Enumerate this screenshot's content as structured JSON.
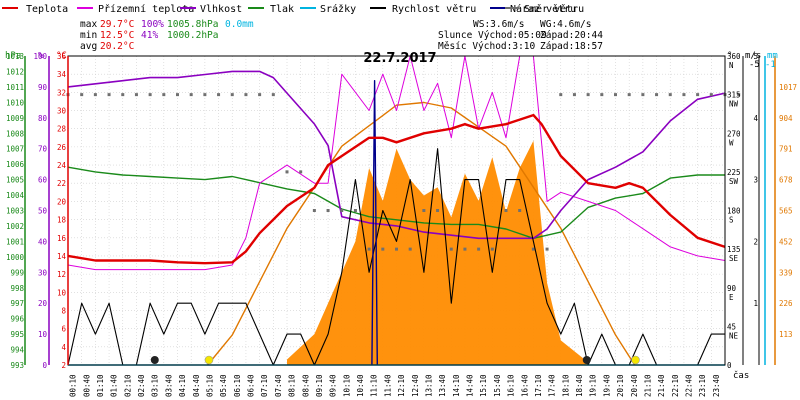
{
  "title": "22.7.2017",
  "legend": [
    {
      "label": "Teplota",
      "color": "#e00000",
      "style": "line"
    },
    {
      "label": "Přízemní teplota",
      "color": "#dd00dd",
      "style": "line"
    },
    {
      "label": "Vlhkost",
      "color": "#8a00c0",
      "style": "line"
    },
    {
      "label": "Tlak",
      "color": "#1a8a1a",
      "style": "line"
    },
    {
      "label": "Srážky",
      "color": "#00b4e0",
      "style": "line"
    },
    {
      "label": "Rychlost větru",
      "color": "#000000",
      "style": "line"
    },
    {
      "label": "Náraz větru",
      "color": "#00008b",
      "style": "line"
    },
    {
      "label": "Směr větru",
      "color": "#707070",
      "style": "dot"
    }
  ],
  "stats": {
    "max_label": "max",
    "max_temp": "29.7°C",
    "max_hum": "100%",
    "max_press": "1005.8hPa",
    "max_rain": "0.0mm",
    "min_label": "min",
    "min_temp": "12.5°C",
    "min_hum": "41%",
    "min_press": "1000.2hPa",
    "avg_label": "avg",
    "avg_temp": "20.2°C",
    "ws": "WS:3.6m/s",
    "wg": "WG:4.6m/s",
    "sun": "Slunce Východ:05:09",
    "sun_set": "Západ:20:44",
    "moon": "Měsíc  Východ:3:10",
    "moon_set": "Západ:18:57"
  },
  "axes": {
    "hpa_label": "hPa",
    "pct_label": "%",
    "degc_label": "°C",
    "deg_label": "°",
    "ms_label": "m/s",
    "mm_label": "mm",
    "time_label": "čas",
    "hpa_ticks": [
      "1013",
      "1012",
      "1011",
      "1010",
      "1009",
      "1008",
      "1007",
      "1006",
      "1005",
      "1004",
      "1003",
      "1002",
      "1001",
      "1000",
      "999",
      "998",
      "997",
      "996",
      "995",
      "994",
      "993"
    ],
    "pct_ticks": [
      "100",
      "90",
      "80",
      "70",
      "60",
      "50",
      "40",
      "30",
      "20",
      "10",
      "0"
    ],
    "degc_ticks": [
      "36",
      "34",
      "32",
      "30",
      "28",
      "26",
      "24",
      "22",
      "20",
      "18",
      "16",
      "14",
      "12",
      "10",
      "8",
      "6",
      "4",
      "2"
    ],
    "dir_ticks": [
      "360",
      "315",
      "270",
      "225",
      "180",
      "135",
      "90",
      "45",
      "0"
    ],
    "dir_names": [
      "N",
      "NW",
      "W",
      "SW",
      "S",
      "SE",
      "E",
      "NE",
      ""
    ],
    "ms_ticks": [
      "5",
      "4",
      "3",
      "2",
      "1"
    ],
    "ms_top": "-5",
    "mm_top": "-1",
    "solar_ticks": [
      "1017",
      "904",
      "791",
      "678",
      "565",
      "452",
      "339",
      "226",
      "113"
    ],
    "time_ticks": [
      "00:10",
      "00:40",
      "01:10",
      "01:40",
      "02:10",
      "02:40",
      "03:10",
      "03:40",
      "04:10",
      "04:40",
      "05:10",
      "05:40",
      "06:10",
      "06:40",
      "07:10",
      "07:40",
      "08:10",
      "08:40",
      "09:10",
      "09:40",
      "10:10",
      "10:40",
      "11:10",
      "11:40",
      "12:10",
      "12:40",
      "13:10",
      "13:40",
      "14:10",
      "14:40",
      "15:10",
      "15:40",
      "16:10",
      "16:40",
      "17:10",
      "17:40",
      "18:10",
      "18:40",
      "19:10",
      "19:40",
      "20:10",
      "20:40",
      "21:10",
      "21:40",
      "22:10",
      "22:40",
      "23:10",
      "23:40"
    ]
  },
  "chart_data": {
    "type": "line",
    "title": "22.7.2017",
    "x_range_hours": [
      0,
      24
    ],
    "temp_range_c": [
      2,
      36
    ],
    "series": [
      {
        "name": "Teplota",
        "unit": "°C",
        "hours": [
          0,
          1,
          2,
          3,
          4,
          5,
          6,
          6.5,
          7,
          8,
          9,
          9.5,
          10,
          11,
          11.5,
          12,
          13,
          14,
          14.5,
          15,
          16,
          17,
          17.3,
          18,
          19,
          20,
          20.5,
          21,
          22,
          23,
          24
        ],
        "values": [
          14,
          13.5,
          13.5,
          13.5,
          13.3,
          13.2,
          13.3,
          14.5,
          16.5,
          19.5,
          21.5,
          24,
          25,
          27,
          27,
          26.5,
          27.5,
          28,
          28.5,
          28,
          28.5,
          29.5,
          28.5,
          25,
          22,
          21.5,
          22,
          21.5,
          18.5,
          16,
          15
        ]
      },
      {
        "name": "Přízemní teplota",
        "unit": "°C",
        "hours": [
          0,
          1,
          2,
          3,
          4,
          5,
          6,
          6.5,
          7,
          8,
          9,
          9.5,
          10,
          11,
          11.5,
          12,
          12.5,
          13,
          13.5,
          14,
          14.5,
          15,
          15.5,
          16,
          16.5,
          17,
          17.5,
          18,
          19,
          20,
          21,
          22,
          23,
          24
        ],
        "values": [
          13,
          12.5,
          12.5,
          12.5,
          12.5,
          12.5,
          13,
          16,
          22,
          24,
          22,
          22,
          34,
          30,
          34,
          30,
          36,
          30,
          33,
          27,
          36,
          28,
          32,
          27,
          36,
          36,
          20,
          21,
          20,
          19,
          17,
          15,
          14,
          13.5
        ]
      },
      {
        "name": "Vlhkost",
        "unit": "%",
        "hours": [
          0,
          1,
          2,
          3,
          4,
          5,
          6,
          7,
          7.5,
          8,
          9,
          9.5,
          10,
          11,
          12,
          13,
          14,
          15,
          16,
          17,
          17.5,
          18,
          19,
          20,
          21,
          22,
          23,
          24
        ],
        "values": [
          90,
          91,
          92,
          93,
          93,
          94,
          95,
          95,
          93,
          88,
          78,
          71,
          48,
          46,
          45,
          43,
          42,
          41,
          41,
          41,
          44,
          50,
          60,
          64,
          69,
          79,
          86,
          88
        ]
      },
      {
        "name": "Tlak",
        "unit": "hPa",
        "hours": [
          0,
          1,
          2,
          3,
          4,
          5,
          6,
          7,
          8,
          9,
          10,
          11,
          12,
          13,
          14,
          15,
          16,
          17,
          18,
          19,
          20,
          21,
          22,
          23,
          24
        ],
        "values": [
          1005.8,
          1005.5,
          1005.3,
          1005.2,
          1005.1,
          1005.0,
          1005.2,
          1004.8,
          1004.4,
          1004.1,
          1003.1,
          1002.6,
          1002.4,
          1002.2,
          1002.1,
          1002.1,
          1001.8,
          1001.2,
          1001.6,
          1003.2,
          1003.8,
          1004.1,
          1005.1,
          1005.3,
          1005.3
        ]
      },
      {
        "name": "Srážky",
        "unit": "mm",
        "hours": [
          0,
          24
        ],
        "values": [
          0,
          0
        ]
      },
      {
        "name": "Rychlost větru",
        "unit": "m/s",
        "hours": [
          0,
          0.5,
          1,
          1.5,
          2,
          2.5,
          3,
          3.5,
          4,
          4.5,
          5,
          5.5,
          6,
          6.5,
          7,
          7.5,
          8,
          8.5,
          9,
          9.5,
          10,
          10.5,
          11,
          11.5,
          12,
          12.5,
          13,
          13.5,
          14,
          14.5,
          15,
          15.5,
          16,
          16.5,
          17,
          17.5,
          18,
          18.5,
          19,
          19.5,
          20,
          20.5,
          21,
          21.5,
          22,
          22.5,
          23,
          23.5,
          24
        ],
        "values": [
          0,
          1,
          0.5,
          1,
          0,
          0,
          1,
          0.5,
          1,
          1,
          0.5,
          1,
          1,
          1,
          0.5,
          0,
          0.5,
          0.5,
          0,
          0.5,
          1.5,
          3,
          1.5,
          2.5,
          2,
          3,
          1.5,
          3.5,
          1,
          3,
          3,
          1.5,
          3,
          3,
          2,
          1,
          0.5,
          1,
          0,
          0.5,
          0,
          0,
          0.5,
          0,
          0,
          0,
          0,
          0.5,
          0.5
        ]
      },
      {
        "name": "Náraz větru",
        "unit": "m/s",
        "hours": [
          11.1,
          11.2,
          11.3
        ],
        "values": [
          0,
          4.6,
          0
        ]
      },
      {
        "name": "Směr větru",
        "unit": "°",
        "hours": [
          0,
          1,
          2,
          3,
          4,
          5,
          6,
          7,
          8,
          9,
          10,
          11,
          12,
          13,
          14,
          15,
          16,
          17,
          18,
          19,
          20,
          21,
          22,
          23,
          24
        ],
        "values": [
          315,
          315,
          315,
          315,
          315,
          315,
          315,
          315,
          225,
          180,
          180,
          135,
          135,
          180,
          135,
          135,
          180,
          135,
          315,
          315,
          315,
          315,
          315,
          315,
          315
        ]
      },
      {
        "name": "Solar",
        "unit": "W/m²",
        "hours": [
          8,
          9,
          10,
          10.5,
          11,
          11.5,
          12,
          12.5,
          13,
          13.5,
          14,
          14.5,
          15,
          15.5,
          16,
          16.5,
          17,
          17.5,
          18,
          19
        ],
        "values": [
          20,
          113,
          339,
          452,
          720,
          600,
          791,
          678,
          620,
          650,
          540,
          700,
          600,
          760,
          560,
          720,
          820,
          300,
          90,
          10
        ]
      },
      {
        "name": "Solar max",
        "unit": "W/m²",
        "hours": [
          5.1,
          6,
          8,
          10,
          12,
          13,
          14,
          16,
          18,
          20,
          20.7
        ],
        "values": [
          0,
          110,
          500,
          800,
          950,
          960,
          940,
          800,
          500,
          110,
          0
        ]
      }
    ]
  }
}
